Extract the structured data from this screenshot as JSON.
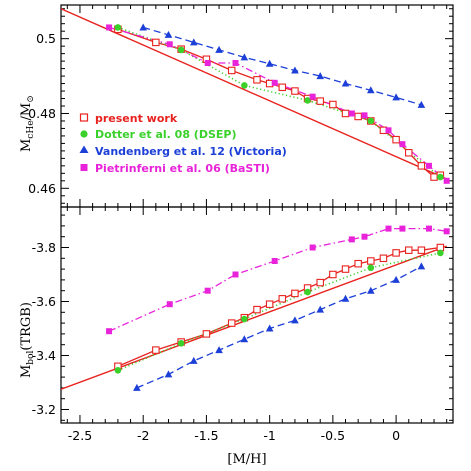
{
  "chart_data": [
    {
      "type": "line",
      "ylabel": "M_cHe/M_⊙",
      "ylabel_main": "M",
      "ylabel_sub": "cHe",
      "ylabel_rest": "/M",
      "ylabel_sub2": "⊙",
      "xlim": [
        -2.65,
        0.45
      ],
      "ylim": [
        0.455,
        0.509
      ],
      "y_ticks": [
        0.46,
        0.48,
        0.5
      ],
      "y_tick_labels": [
        "0.46",
        "0.48",
        "0.5"
      ],
      "legend_position": "left",
      "series": [
        {
          "name": "present work",
          "color": "#e8221f",
          "marker": "open-square",
          "line": "solid",
          "x": [
            -2.2,
            -1.9,
            -1.7,
            -1.5,
            -1.3,
            -1.1,
            -1.0,
            -0.9,
            -0.8,
            -0.7,
            -0.6,
            -0.5,
            -0.4,
            -0.3,
            -0.2,
            -0.1,
            0.0,
            0.1,
            0.2,
            0.3,
            0.35
          ],
          "y": [
            0.5025,
            0.499,
            0.4972,
            0.4945,
            0.4915,
            0.489,
            0.488,
            0.487,
            0.486,
            0.484,
            0.4833,
            0.4824,
            0.48,
            0.4792,
            0.478,
            0.4755,
            0.473,
            0.4695,
            0.466,
            0.463,
            0.4635
          ],
          "fit_x": [
            -2.65,
            0.4
          ],
          "fit_y": [
            0.508,
            0.4625
          ]
        },
        {
          "name": "Dotter et al. 08 (DSEP)",
          "color": "#3ad12b",
          "marker": "filled-circle",
          "line": "dotted",
          "x": [
            -2.2,
            -1.7,
            -1.2,
            -0.7,
            -0.2,
            0.35
          ],
          "y": [
            0.503,
            0.497,
            0.4875,
            0.4835,
            0.478,
            0.463
          ]
        },
        {
          "name": "Vandenberg et al. 12 (Victoria)",
          "color": "#1c3fd8",
          "marker": "filled-triangle",
          "line": "dashed",
          "x": [
            -2.0,
            -1.8,
            -1.6,
            -1.4,
            -1.2,
            -1.0,
            -0.8,
            -0.6,
            -0.4,
            -0.2,
            0.0,
            0.2
          ],
          "y": [
            0.503,
            0.501,
            0.499,
            0.497,
            0.495,
            0.4933,
            0.4915,
            0.49,
            0.488,
            0.4862,
            0.4843,
            0.4823
          ]
        },
        {
          "name": "Pietrinferni et al. 06 (BaSTI)",
          "color": "#e823d9",
          "marker": "filled-square",
          "line": "dash-dot",
          "x": [
            -2.27,
            -1.79,
            -1.49,
            -1.27,
            -0.96,
            -0.66,
            -0.35,
            -0.25,
            -0.06,
            0.05,
            0.26,
            0.4
          ],
          "y": [
            0.503,
            0.4985,
            0.4935,
            0.4935,
            0.4882,
            0.4845,
            0.48,
            0.4795,
            0.4755,
            0.4718,
            0.466,
            0.462
          ]
        }
      ]
    },
    {
      "type": "line",
      "xlabel": "[M/H]",
      "ylabel": "M_bol(TRGB)",
      "ylabel_main": "M",
      "ylabel_sub": "bol",
      "ylabel_rest": "(TRGB)",
      "xlim": [
        -2.65,
        0.45
      ],
      "ylim": [
        -3.15,
        -3.95
      ],
      "inverted_y": true,
      "x_ticks": [
        -2.5,
        -2,
        -1.5,
        -1,
        -0.5,
        0
      ],
      "x_tick_labels": [
        "-2.5",
        "-2",
        "-1.5",
        "-1",
        "-0.5",
        "0"
      ],
      "y_ticks": [
        -3.2,
        -3.4,
        -3.6,
        -3.8
      ],
      "y_tick_labels": [
        "-3.2",
        "-3.4",
        "-3.6",
        "-3.8"
      ],
      "series": [
        {
          "name": "present work",
          "color": "#e8221f",
          "marker": "open-square",
          "line": "solid",
          "x": [
            -2.2,
            -1.9,
            -1.7,
            -1.5,
            -1.3,
            -1.2,
            -1.1,
            -1.0,
            -0.9,
            -0.8,
            -0.7,
            -0.6,
            -0.5,
            -0.4,
            -0.3,
            -0.2,
            -0.1,
            0.0,
            0.1,
            0.2,
            0.35
          ],
          "y": [
            -3.36,
            -3.42,
            -3.45,
            -3.48,
            -3.52,
            -3.54,
            -3.57,
            -3.59,
            -3.61,
            -3.63,
            -3.65,
            -3.67,
            -3.7,
            -3.72,
            -3.74,
            -3.75,
            -3.76,
            -3.78,
            -3.79,
            -3.79,
            -3.8
          ],
          "fit_x": [
            -2.65,
            0.4
          ],
          "fit_y": [
            -3.275,
            -3.805
          ]
        },
        {
          "name": "Dotter et al. 08 (DSEP)",
          "color": "#3ad12b",
          "marker": "filled-circle",
          "line": "dotted",
          "x": [
            -2.2,
            -1.7,
            -1.2,
            -0.7,
            -0.2,
            0.35
          ],
          "y": [
            -3.345,
            -3.445,
            -3.535,
            -3.635,
            -3.725,
            -3.78
          ]
        },
        {
          "name": "Vandenberg et al. 12 (Victoria)",
          "color": "#1c3fd8",
          "marker": "filled-triangle",
          "line": "dashed",
          "x": [
            -2.05,
            -1.8,
            -1.6,
            -1.4,
            -1.2,
            -1.0,
            -0.8,
            -0.6,
            -0.4,
            -0.2,
            0.0,
            0.2
          ],
          "y": [
            -3.28,
            -3.33,
            -3.38,
            -3.42,
            -3.46,
            -3.5,
            -3.53,
            -3.57,
            -3.61,
            -3.64,
            -3.68,
            -3.73
          ]
        },
        {
          "name": "Pietrinferni et al. 06 (BaSTI)",
          "color": "#e823d9",
          "marker": "filled-square",
          "line": "dash-dot",
          "x": [
            -2.27,
            -1.79,
            -1.49,
            -1.27,
            -0.96,
            -0.66,
            -0.35,
            -0.25,
            -0.06,
            0.05,
            0.26,
            0.4
          ],
          "y": [
            -3.49,
            -3.59,
            -3.64,
            -3.7,
            -3.75,
            -3.8,
            -3.83,
            -3.84,
            -3.87,
            -3.87,
            -3.87,
            -3.86
          ]
        }
      ]
    }
  ]
}
